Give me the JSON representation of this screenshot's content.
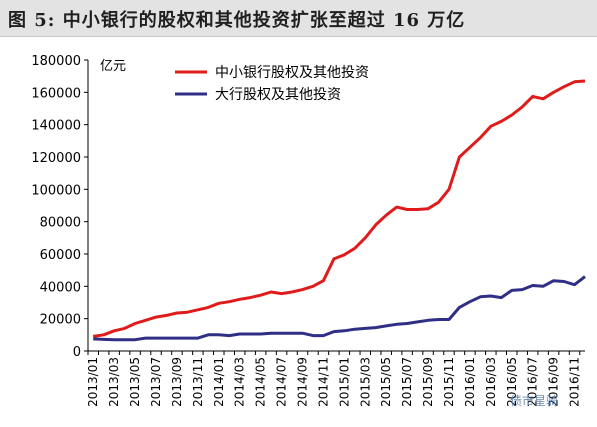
{
  "figure": {
    "label": "图 5:",
    "title": "中小银行的股权和其他投资扩张至超过 16 万亿"
  },
  "watermark": "债市星骑",
  "chart_data": {
    "type": "line",
    "unit_label": "亿元",
    "ylim": [
      0,
      180000
    ],
    "yticks": [
      "0",
      "20000",
      "40000",
      "60000",
      "80000",
      "100000",
      "120000",
      "140000",
      "160000",
      "180000"
    ],
    "ytick_values": [
      0,
      20000,
      40000,
      60000,
      80000,
      100000,
      120000,
      140000,
      160000,
      180000
    ],
    "grid": false,
    "legend_position": "top-left",
    "x": [
      "2013/01",
      "2013/02",
      "2013/03",
      "2013/04",
      "2013/05",
      "2013/06",
      "2013/07",
      "2013/08",
      "2013/09",
      "2013/10",
      "2013/11",
      "2013/12",
      "2014/01",
      "2014/02",
      "2014/03",
      "2014/04",
      "2014/05",
      "2014/06",
      "2014/07",
      "2014/08",
      "2014/09",
      "2014/10",
      "2014/11",
      "2014/12",
      "2015/01",
      "2015/02",
      "2015/03",
      "2015/04",
      "2015/05",
      "2015/06",
      "2015/07",
      "2015/08",
      "2015/09",
      "2015/10",
      "2015/11",
      "2015/12",
      "2016/01",
      "2016/02",
      "2016/03",
      "2016/04",
      "2016/05",
      "2016/06",
      "2016/07",
      "2016/08",
      "2016/09",
      "2016/10",
      "2016/11",
      "2016/12"
    ],
    "xticks": [
      "2013/01",
      "2013/03",
      "2013/05",
      "2013/07",
      "2013/09",
      "2013/11",
      "2014/01",
      "2014/03",
      "2014/05",
      "2014/07",
      "2014/09",
      "2014/11",
      "2015/01",
      "2015/03",
      "2015/05",
      "2015/07",
      "2015/09",
      "2015/11",
      "2016/01",
      "2016/03",
      "2016/05",
      "2016/07",
      "2016/09",
      "2016/11"
    ],
    "series": [
      {
        "name": "中小银行股权及其他投资",
        "color": "#e01b1b",
        "values": [
          9000,
          10000,
          12500,
          14000,
          17000,
          19000,
          21000,
          22000,
          23500,
          24000,
          25500,
          27000,
          29500,
          30500,
          32000,
          33000,
          34500,
          36500,
          35500,
          36500,
          38000,
          40000,
          43500,
          57000,
          59500,
          63500,
          70000,
          78000,
          84000,
          89000,
          87500,
          87500,
          88000,
          92000,
          100000,
          120000,
          126000,
          132000,
          139000,
          142000,
          146000,
          151000,
          157500,
          156000,
          160000,
          163500,
          166500,
          167000
        ]
      },
      {
        "name": "大行股权及其他投资",
        "color": "#2f2f86",
        "values": [
          7500,
          7200,
          7000,
          7000,
          7000,
          8000,
          8000,
          8000,
          8000,
          8000,
          8000,
          10000,
          10000,
          9500,
          10500,
          10500,
          10500,
          11000,
          11000,
          11000,
          11000,
          9500,
          9500,
          12000,
          12500,
          13500,
          14000,
          14500,
          15500,
          16500,
          17000,
          18000,
          19000,
          19500,
          19500,
          27000,
          30500,
          33500,
          34000,
          33000,
          37500,
          38000,
          40500,
          40000,
          43500,
          43000,
          41000,
          46000
        ]
      }
    ]
  }
}
